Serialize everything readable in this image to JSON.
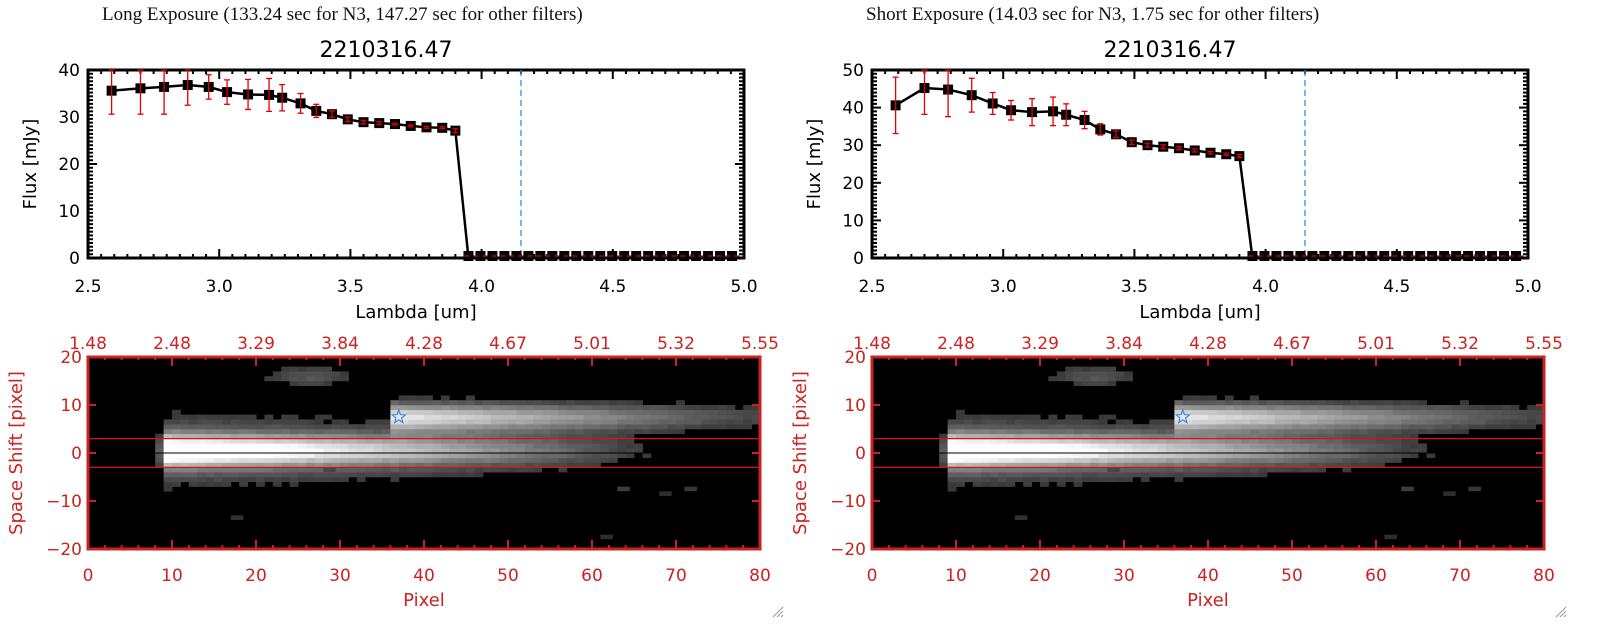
{
  "panels": [
    {
      "id": "left",
      "heading": "Long Exposure (133.24 sec for N3, 147.27 sec for other filters)",
      "spectrum": {
        "type": "line",
        "title": "2210316.47",
        "xlabel": "Lambda [um]",
        "ylabel": "Flux [mJy]",
        "xlim": [
          2.5,
          5.0
        ],
        "ylim": [
          0,
          40
        ],
        "xticks": [
          "2.5",
          "3.0",
          "3.5",
          "4.0",
          "4.5",
          "5.0"
        ],
        "xtick_values": [
          2.5,
          3.0,
          3.5,
          4.0,
          4.5,
          5.0
        ],
        "yticks": [
          "0",
          "10",
          "20",
          "30",
          "40"
        ],
        "ytick_values": [
          0,
          10,
          20,
          30,
          40
        ],
        "vline": 4.15,
        "hline": 0,
        "x": [
          2.59,
          2.7,
          2.79,
          2.88,
          2.96,
          3.03,
          3.11,
          3.19,
          3.24,
          3.31,
          3.37,
          3.43,
          3.49,
          3.55,
          3.61,
          3.67,
          3.73,
          3.79,
          3.85,
          3.9
        ],
        "y": [
          35.6,
          36.1,
          36.4,
          36.8,
          36.4,
          35.3,
          34.8,
          34.7,
          34.1,
          32.9,
          31.3,
          30.6,
          29.5,
          28.9,
          28.7,
          28.5,
          28.1,
          27.8,
          27.7,
          27.1
        ],
        "yerr": [
          5.0,
          5.5,
          5.8,
          4.3,
          2.6,
          2.6,
          3.2,
          3.5,
          2.8,
          2.1,
          1.4,
          0.7,
          0.5,
          0.4,
          0.3,
          0.2,
          0.2,
          0.2,
          0.2,
          0.4
        ],
        "zero_x_start": 3.95,
        "zero_count": 23
      },
      "image": {
        "xlabel": "Pixel",
        "ylabel": "Space Shift [pixel]",
        "xlim": [
          0,
          80
        ],
        "ylim": [
          -20,
          20
        ],
        "xticks": [
          "0",
          "10",
          "20",
          "30",
          "40",
          "50",
          "60",
          "70",
          "80"
        ],
        "yticks": [
          "-20",
          "-10",
          "0",
          "10",
          "20"
        ],
        "top_ticks": [
          "1.48",
          "2.48",
          "3.29",
          "3.84",
          "4.28",
          "4.67",
          "5.01",
          "5.32",
          "5.55"
        ],
        "aperture_lines": [
          3,
          -3
        ],
        "star_marker": [
          37,
          7.5
        ]
      }
    },
    {
      "id": "right",
      "heading": "Short Exposure (14.03 sec for N3, 1.75 sec for other filters)",
      "spectrum": {
        "type": "line",
        "title": "2210316.47",
        "xlabel": "Lambda [um]",
        "ylabel": "Flux [mJy]",
        "xlim": [
          2.5,
          5.0
        ],
        "ylim": [
          0,
          50
        ],
        "xticks": [
          "2.5",
          "3.0",
          "3.5",
          "4.0",
          "4.5",
          "5.0"
        ],
        "xtick_values": [
          2.5,
          3.0,
          3.5,
          4.0,
          4.5,
          5.0
        ],
        "yticks": [
          "0",
          "10",
          "20",
          "30",
          "40",
          "50"
        ],
        "ytick_values": [
          0,
          10,
          20,
          30,
          40,
          50
        ],
        "vline": 4.15,
        "hline": 0,
        "x": [
          2.59,
          2.7,
          2.79,
          2.88,
          2.96,
          3.03,
          3.11,
          3.19,
          3.24,
          3.31,
          3.37,
          3.43,
          3.49,
          3.55,
          3.61,
          3.67,
          3.73,
          3.79,
          3.85,
          3.9
        ],
        "y": [
          40.6,
          45.2,
          44.8,
          43.3,
          41.1,
          39.3,
          38.8,
          39.0,
          38.1,
          36.7,
          34.2,
          32.9,
          30.8,
          30.0,
          29.6,
          29.2,
          28.6,
          28.0,
          27.6,
          27.1
        ],
        "yerr": [
          7.5,
          7.0,
          7.2,
          4.5,
          2.9,
          2.6,
          3.6,
          3.8,
          2.9,
          2.3,
          1.5,
          0.9,
          0.6,
          0.5,
          0.5,
          0.4,
          0.4,
          0.3,
          0.3,
          0.4
        ],
        "zero_x_start": 3.95,
        "zero_count": 23
      },
      "image": {
        "xlabel": "Pixel",
        "ylabel": "Space Shift [pixel]",
        "xlim": [
          0,
          80
        ],
        "ylim": [
          -20,
          20
        ],
        "xticks": [
          "0",
          "10",
          "20",
          "30",
          "40",
          "50",
          "60",
          "70",
          "80"
        ],
        "yticks": [
          "-20",
          "-10",
          "0",
          "10",
          "20"
        ],
        "top_ticks": [
          "1.48",
          "2.48",
          "3.29",
          "3.84",
          "4.28",
          "4.67",
          "5.01",
          "5.32",
          "5.55"
        ],
        "aperture_lines": [
          3,
          -3
        ],
        "star_marker": [
          37,
          7.5
        ]
      }
    }
  ],
  "chart_data": [
    {
      "type": "line",
      "title": "2210316.47",
      "subtitle": "Long Exposure (133.24 sec for N3, 147.27 sec for other filters)",
      "xlabel": "Lambda [um]",
      "ylabel": "Flux [mJy]",
      "xlim": [
        2.5,
        5.0
      ],
      "ylim": [
        0,
        40
      ],
      "series": [
        {
          "name": "flux",
          "x": [
            2.59,
            2.7,
            2.79,
            2.88,
            2.96,
            3.03,
            3.11,
            3.19,
            3.24,
            3.31,
            3.37,
            3.43,
            3.49,
            3.55,
            3.61,
            3.67,
            3.73,
            3.79,
            3.85,
            3.9,
            3.95
          ],
          "values": [
            35.6,
            36.1,
            36.4,
            36.8,
            36.4,
            35.3,
            34.8,
            34.7,
            34.1,
            32.9,
            31.3,
            30.6,
            29.5,
            28.9,
            28.7,
            28.5,
            28.1,
            27.8,
            27.7,
            27.1,
            0
          ]
        }
      ],
      "annotations": [
        "vertical dashed line at 4.15 um",
        "horizontal dashed line at 0"
      ]
    },
    {
      "type": "line",
      "title": "2210316.47",
      "subtitle": "Short Exposure (14.03 sec for N3, 1.75 sec for other filters)",
      "xlabel": "Lambda [um]",
      "ylabel": "Flux [mJy]",
      "xlim": [
        2.5,
        5.0
      ],
      "ylim": [
        0,
        50
      ],
      "series": [
        {
          "name": "flux",
          "x": [
            2.59,
            2.7,
            2.79,
            2.88,
            2.96,
            3.03,
            3.11,
            3.19,
            3.24,
            3.31,
            3.37,
            3.43,
            3.49,
            3.55,
            3.61,
            3.67,
            3.73,
            3.79,
            3.85,
            3.9,
            3.95
          ],
          "values": [
            40.6,
            45.2,
            44.8,
            43.3,
            41.1,
            39.3,
            38.8,
            39.0,
            38.1,
            36.7,
            34.2,
            32.9,
            30.8,
            30.0,
            29.6,
            29.2,
            28.6,
            28.0,
            27.6,
            27.1,
            0
          ]
        }
      ],
      "annotations": [
        "vertical dashed line at 4.15 um",
        "horizontal dashed line at 0"
      ]
    },
    {
      "type": "heatmap",
      "title": "2D spectral image (long exposure)",
      "xlabel": "Pixel",
      "ylabel": "Space Shift [pixel]",
      "xlim": [
        0,
        80
      ],
      "ylim": [
        -20,
        20
      ],
      "top_axis_ticks": [
        "1.48",
        "2.48",
        "3.29",
        "3.84",
        "4.28",
        "4.67",
        "5.01",
        "5.32",
        "5.55"
      ]
    },
    {
      "type": "heatmap",
      "title": "2D spectral image (short exposure)",
      "xlabel": "Pixel",
      "ylabel": "Space Shift [pixel]",
      "xlim": [
        0,
        80
      ],
      "ylim": [
        -20,
        20
      ],
      "top_axis_ticks": [
        "1.48",
        "2.48",
        "3.29",
        "3.84",
        "4.28",
        "4.67",
        "5.01",
        "5.32",
        "5.55"
      ]
    }
  ],
  "colors": {
    "axis": "#000000",
    "error": "#e00000",
    "vline": "#3a8fe0",
    "image_axis": "#cc2222",
    "star": "#3a8fe0"
  }
}
